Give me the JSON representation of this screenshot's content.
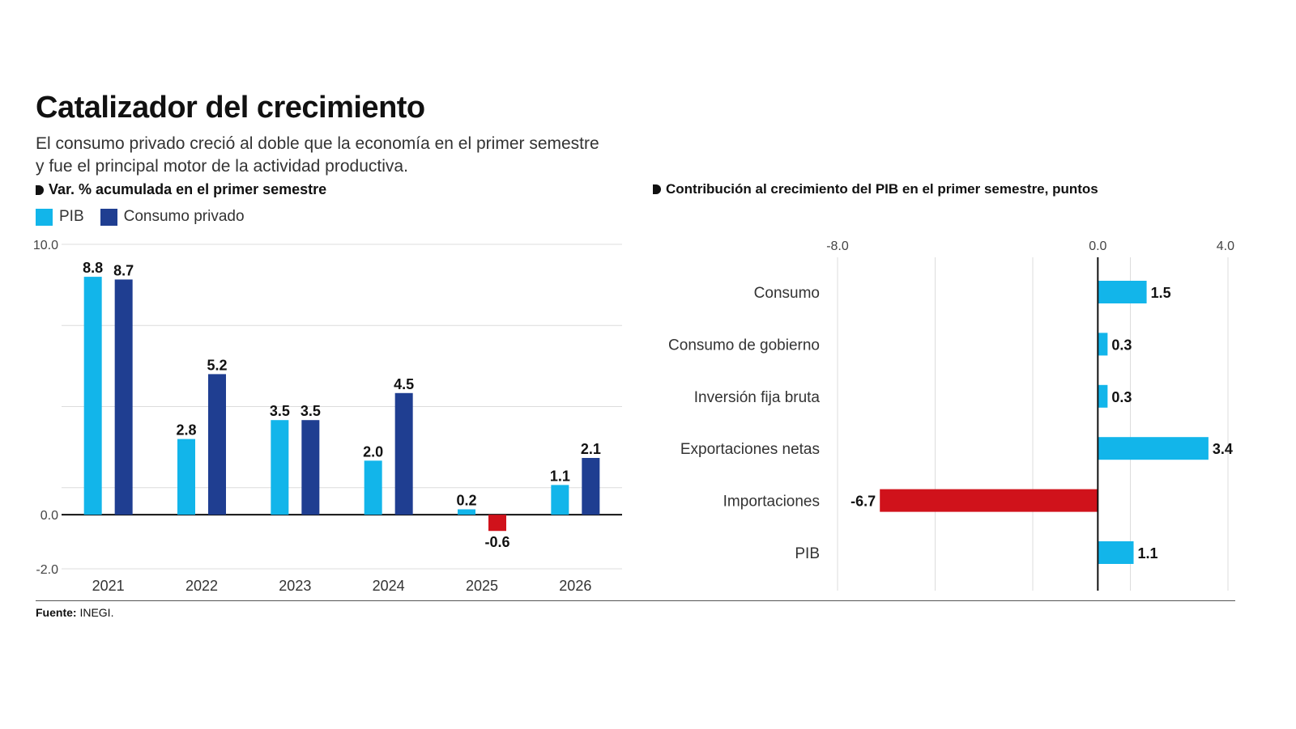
{
  "title": "Catalizador del crecimiento",
  "subtitle": "El consumo privado creció al doble que la economía en el primer semestre y fue el principal motor de la actividad productiva.",
  "source": {
    "label": "Fuente:",
    "text": "INEGI."
  },
  "colors": {
    "pib": "#12b5ea",
    "consumo": "#1f3e91",
    "negative": "#d0121b"
  },
  "chart_data": [
    {
      "type": "bar",
      "title": "Var. % acumulada en el primer semestre",
      "categories": [
        "2021",
        "2022",
        "2023",
        "2024",
        "2025",
        "2026"
      ],
      "series": [
        {
          "name": "PIB",
          "values": [
            8.8,
            2.8,
            3.5,
            2.0,
            0.2,
            1.1
          ]
        },
        {
          "name": "Consumo privado",
          "values": [
            8.7,
            5.2,
            3.5,
            4.5,
            -0.6,
            2.1
          ]
        }
      ],
      "value_labels": {
        "PIB": [
          "8.8",
          "2.8",
          "3.5",
          "2.0",
          "0.2",
          "1.1"
        ],
        "Consumo privado": [
          "8.7",
          "5.2",
          "3.5",
          "4.5",
          "-0.6",
          "2.1"
        ]
      },
      "ylim": [
        -2,
        10
      ],
      "yticks": [
        "10.0",
        "0.0",
        "-2.0"
      ],
      "ytick_values": [
        10,
        0,
        -2
      ],
      "grid_values": [
        10,
        7,
        4,
        1,
        -2
      ],
      "legend": "top-left",
      "grid": true
    },
    {
      "type": "bar",
      "orientation": "horizontal",
      "title": "Contribución al crecimiento del PIB en el primer semestre, puntos",
      "categories": [
        "Consumo",
        "Consumo de gobierno",
        "Inversión fija bruta",
        "Exportaciones netas",
        "Importaciones",
        "PIB"
      ],
      "values": [
        1.5,
        0.3,
        0.3,
        3.4,
        -6.7,
        1.1
      ],
      "value_labels": [
        "1.5",
        "0.3",
        "0.3",
        "3.4",
        "-6.7",
        "1.1"
      ],
      "xlim": [
        -8,
        4
      ],
      "xticks": [
        "-8.0",
        "0.0",
        "4.0"
      ],
      "xtick_values": [
        -8,
        0,
        4
      ],
      "grid_values": [
        -8,
        -5,
        -2,
        1,
        4
      ],
      "grid": true
    }
  ]
}
